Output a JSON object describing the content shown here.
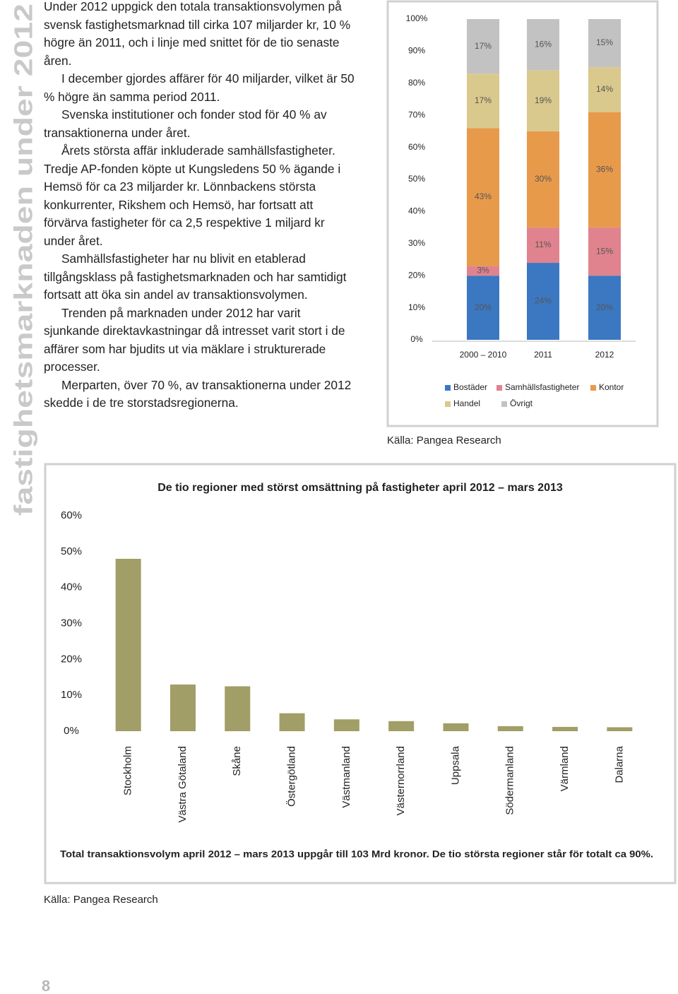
{
  "side_title": "fastighetsmarknaden under 2012",
  "text": {
    "paragraphs": [
      "Under 2012 uppgick den totala transaktionsvolymen på svensk fastighetsmarknad till cirka 107 miljarder kr, 10 % högre än 2011, och i linje med snittet för de tio senaste åren.",
      "I december gjordes affärer för 40 miljarder, vilket är 50 % högre än samma period 2011.",
      "Svenska institutioner och fonder stod för 40 % av transaktionerna under året.",
      "Årets största affär inkluderade samhällsfastigheter. Tredje AP-fonden köpte ut Kungsledens 50 % ägande i Hemsö för ca 23 miljarder kr. Lönnbackens största konkurrenter, Rikshem och Hemsö, har fortsatt att förvärva fastigheter för ca 2,5 respektive 1 miljard kr under året.",
      "Samhällsfastigheter har nu blivit en etablerad tillgångsklass på fastighetsmarknaden och har samtidigt fortsatt att öka sin andel av transaktionsvolymen.",
      "Trenden på marknaden under 2012 har varit sjunkande direktavkastningar då intresset varit stort i de affärer som har bjudits ut via mäklare i strukturerade processer.",
      "Merparten, över 70 %, av transaktionerna under 2012 skedde i de tre storstadsregionerna."
    ]
  },
  "chart_data": [
    {
      "type": "stacked_bar",
      "categories": [
        "2000 – 2010",
        "2011",
        "2012"
      ],
      "series": [
        {
          "name": "Bostäder",
          "color": "#3b78c1",
          "values": [
            20,
            24,
            20
          ],
          "value_labels": [
            "20%",
            "24%",
            "20%"
          ]
        },
        {
          "name": "Samhällsfastigheter",
          "color": "#e0838e",
          "values": [
            3,
            11,
            15
          ],
          "value_labels": [
            "3%",
            "11%",
            "15%"
          ]
        },
        {
          "name": "Kontor",
          "color": "#e89a4b",
          "values": [
            43,
            30,
            36
          ],
          "value_labels": [
            "43%",
            "30%",
            "36%"
          ]
        },
        {
          "name": "Handel",
          "color": "#d9c98c",
          "values": [
            17,
            19,
            14
          ],
          "value_labels": [
            "17%",
            "19%",
            "14%"
          ]
        },
        {
          "name": "Övrigt",
          "color": "#c2c2c2",
          "values": [
            17,
            16,
            15
          ],
          "value_labels": [
            "17%",
            "16%",
            "15%"
          ]
        }
      ],
      "ylim": [
        0,
        100
      ],
      "yticks": [
        {
          "value": 0,
          "label": "0%"
        },
        {
          "value": 10,
          "label": "10%"
        },
        {
          "value": 20,
          "label": "20%"
        },
        {
          "value": 30,
          "label": "30%"
        },
        {
          "value": 40,
          "label": "40%"
        },
        {
          "value": 50,
          "label": "50%"
        },
        {
          "value": 60,
          "label": "60%"
        },
        {
          "value": 70,
          "label": "70%"
        },
        {
          "value": 80,
          "label": "80%"
        },
        {
          "value": 90,
          "label": "90%"
        },
        {
          "value": 100,
          "label": "100%"
        }
      ],
      "grid": false,
      "legend": "bottom",
      "source": "Källa: Pangea Research"
    },
    {
      "type": "bar",
      "title": "De tio regioner med störst omsättning på fastigheter april 2012 – mars 2013",
      "categories": [
        "Stockholm",
        "Västra Götaland",
        "Skåne",
        "Östergötland",
        "Västmanland",
        "Västernorrland",
        "Uppsala",
        "Södermanland",
        "Värmland",
        "Dalarna"
      ],
      "values": [
        48,
        13,
        12.5,
        5,
        3.3,
        2.8,
        2.2,
        1.4,
        1.2,
        1.1
      ],
      "color": "#a19e67",
      "ylim": [
        0,
        60
      ],
      "yticks": [
        {
          "value": 0,
          "label": "0%"
        },
        {
          "value": 10,
          "label": "10%"
        },
        {
          "value": 20,
          "label": "20%"
        },
        {
          "value": 30,
          "label": "30%"
        },
        {
          "value": 40,
          "label": "40%"
        },
        {
          "value": 50,
          "label": "50%"
        },
        {
          "value": 60,
          "label": "60%"
        }
      ],
      "grid": false,
      "note": "Total transaktionsvolym april 2012 – mars 2013 uppgår till 103 Mrd kronor. De tio största regioner står för totalt ca 90%.",
      "source": "Källa: Pangea Research"
    }
  ],
  "page_number": "8"
}
